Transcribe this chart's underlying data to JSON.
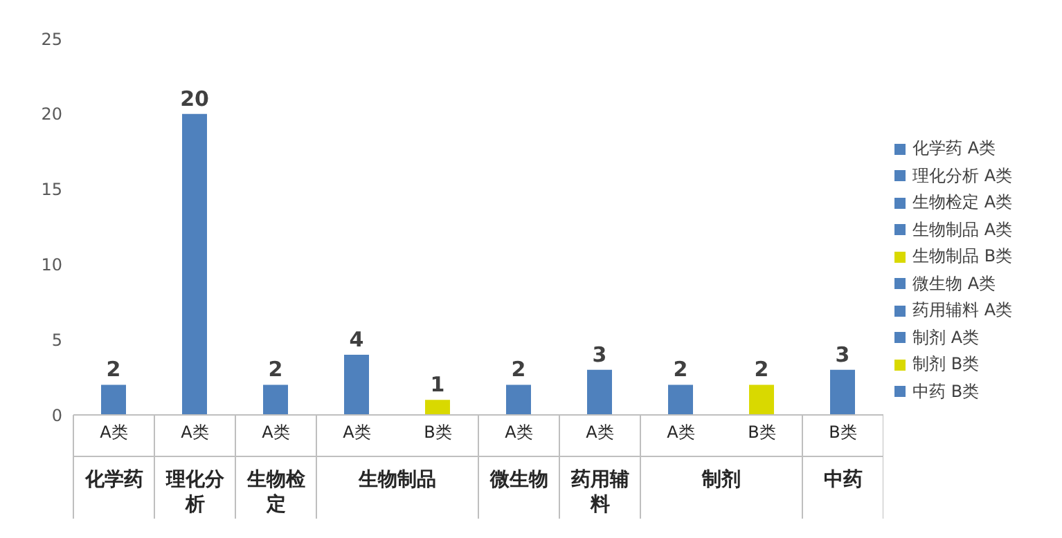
{
  "chart_data": {
    "type": "bar",
    "categories": [
      "A类",
      "A类",
      "A类",
      "A类",
      "B类",
      "A类",
      "A类",
      "A类",
      "B类",
      "B类"
    ],
    "series": [
      {
        "name": "化学药 A类",
        "color": "#4f81bd",
        "values": [
          2,
          null,
          null,
          null,
          null,
          null,
          null,
          null,
          null,
          null
        ]
      },
      {
        "name": "理化分析 A类",
        "color": "#4f81bd",
        "values": [
          null,
          20,
          null,
          null,
          null,
          null,
          null,
          null,
          null,
          null
        ]
      },
      {
        "name": "生物检定 A类",
        "color": "#4f81bd",
        "values": [
          null,
          null,
          2,
          null,
          null,
          null,
          null,
          null,
          null,
          null
        ]
      },
      {
        "name": "生物制品 A类",
        "color": "#4f81bd",
        "values": [
          null,
          null,
          null,
          4,
          null,
          null,
          null,
          null,
          null,
          null
        ]
      },
      {
        "name": "生物制品 B类",
        "color": "#d9d900",
        "values": [
          null,
          null,
          null,
          null,
          1,
          null,
          null,
          null,
          null,
          null
        ]
      },
      {
        "name": "微生物 A类",
        "color": "#4f81bd",
        "values": [
          null,
          null,
          null,
          null,
          null,
          2,
          null,
          null,
          null,
          null
        ]
      },
      {
        "name": "药用辅料 A类",
        "color": "#4f81bd",
        "values": [
          null,
          null,
          null,
          null,
          null,
          null,
          3,
          null,
          null,
          null
        ]
      },
      {
        "name": "制剂 A类",
        "color": "#4f81bd",
        "values": [
          null,
          null,
          null,
          null,
          null,
          null,
          null,
          2,
          null,
          null
        ]
      },
      {
        "name": "制剂 B类",
        "color": "#d9d900",
        "values": [
          null,
          null,
          null,
          null,
          null,
          null,
          null,
          null,
          2,
          null
        ]
      },
      {
        "name": "中药 B类",
        "color": "#4f81bd",
        "values": [
          null,
          null,
          null,
          null,
          null,
          null,
          null,
          null,
          null,
          3
        ]
      }
    ],
    "stacked": true,
    "annotations": [
      "化学药",
      "理化分析",
      "生物检定",
      "生物制品",
      "微生物",
      "药用辅料",
      "制剂",
      "中药"
    ],
    "ylim": [
      0,
      25
    ],
    "yticks": [
      0,
      5,
      10,
      15,
      20,
      25
    ],
    "grid": false,
    "legend": "right",
    "data_labels": true
  }
}
